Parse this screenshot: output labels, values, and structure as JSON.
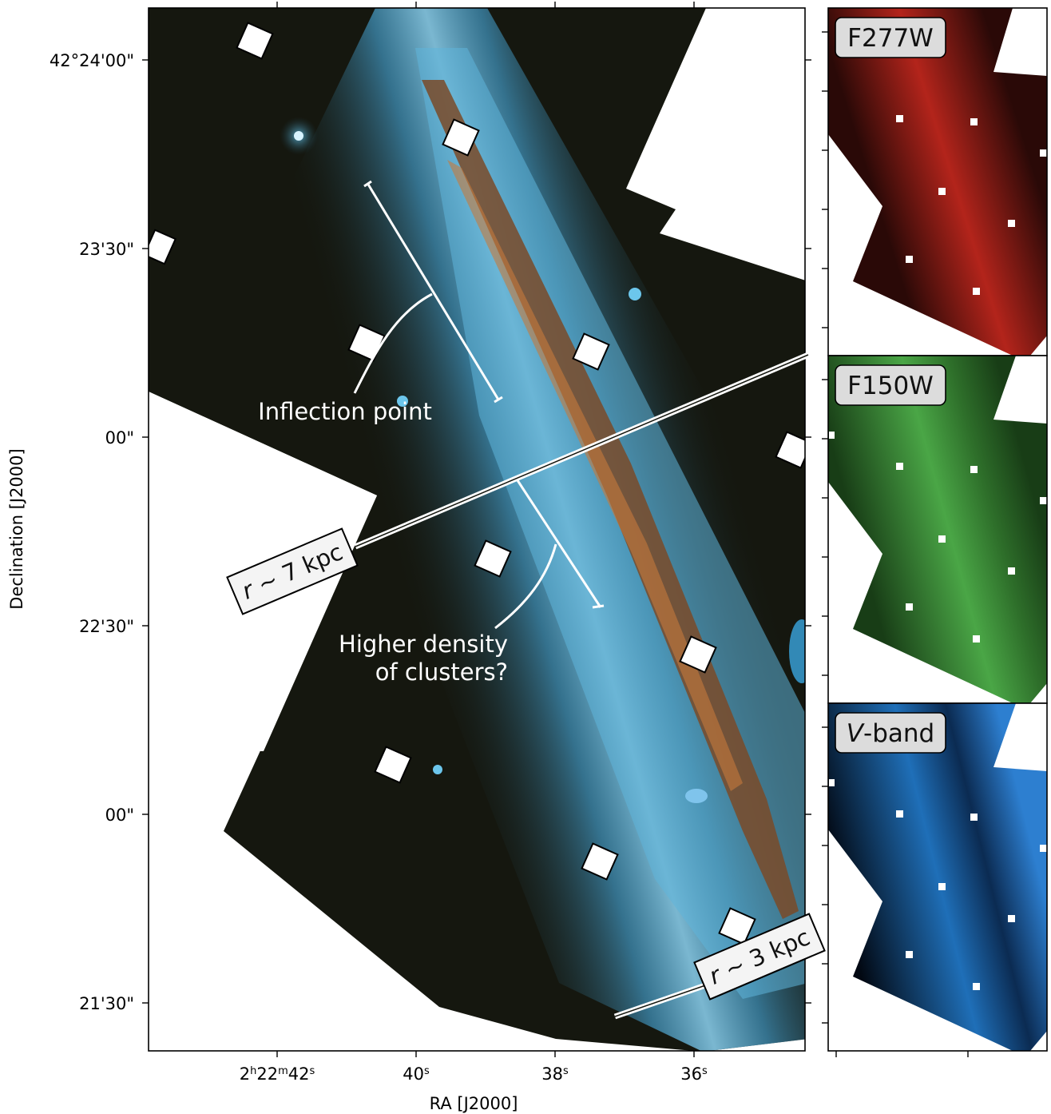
{
  "main_panel": {
    "dec_axis": {
      "title": "Declination [J2000]",
      "ticks": [
        "42°24'00\"",
        "23'30\"",
        "00\"",
        "22'30\"",
        "00\"",
        "21'30\""
      ]
    },
    "ra_axis": {
      "title": "RA [J2000]",
      "ticks": [
        {
          "main": "2",
          "h": "h",
          "mid": "22",
          "m": "m",
          "val": "42",
          "s": "s"
        },
        {
          "main": "",
          "h": "",
          "mid": "",
          "m": "",
          "val": "40",
          "s": "s"
        },
        {
          "main": "",
          "h": "",
          "mid": "",
          "m": "",
          "val": "38",
          "s": "s"
        },
        {
          "main": "",
          "h": "",
          "mid": "",
          "m": "",
          "val": "36",
          "s": "s"
        }
      ]
    },
    "annotations": {
      "inflection": "Inflection point",
      "higher_density_line1": "Higher density",
      "higher_density_line2": "of clusters?",
      "r7_pre": "r",
      "r7_rest": " ~ 7 kpc",
      "r3_pre": "r",
      "r3_rest": " ~ 3 kpc"
    }
  },
  "side_panels": [
    {
      "label": "F277W",
      "italic_prefix": "",
      "color": "#b52018"
    },
    {
      "label": "F150W",
      "italic_prefix": "",
      "color": "#2f8a2a"
    },
    {
      "label": "-band",
      "italic_prefix": "V",
      "color": "#1d6fc0"
    }
  ],
  "colors": {
    "background_sky": "#15170f",
    "galaxy_halo": "#4aa8d6",
    "dust_lane": "#7a4a28",
    "annotation": "#ffffff"
  }
}
